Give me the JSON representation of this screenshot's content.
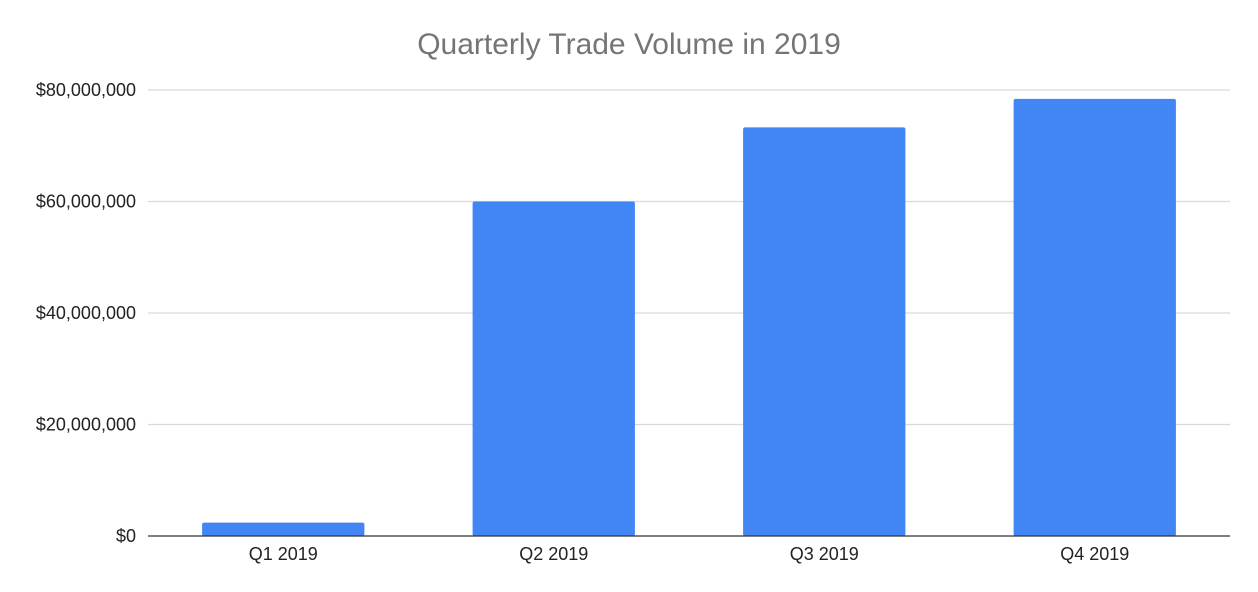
{
  "chart_data": {
    "type": "bar",
    "title": "Quarterly Trade Volume in 2019",
    "xlabel": "",
    "ylabel": "",
    "categories": [
      "Q1 2019",
      "Q2 2019",
      "Q3 2019",
      "Q4 2019"
    ],
    "values": [
      2400000,
      60000000,
      73300000,
      78400000
    ],
    "ylim": [
      0,
      80000000
    ],
    "yticks": [
      0,
      20000000,
      40000000,
      60000000,
      80000000
    ],
    "ytick_labels": [
      "$0",
      "$20,000,000",
      "$40,000,000",
      "$60,000,000",
      "$80,000,000"
    ],
    "grid": true,
    "legend": "none",
    "bar_color": "#4285f4"
  }
}
